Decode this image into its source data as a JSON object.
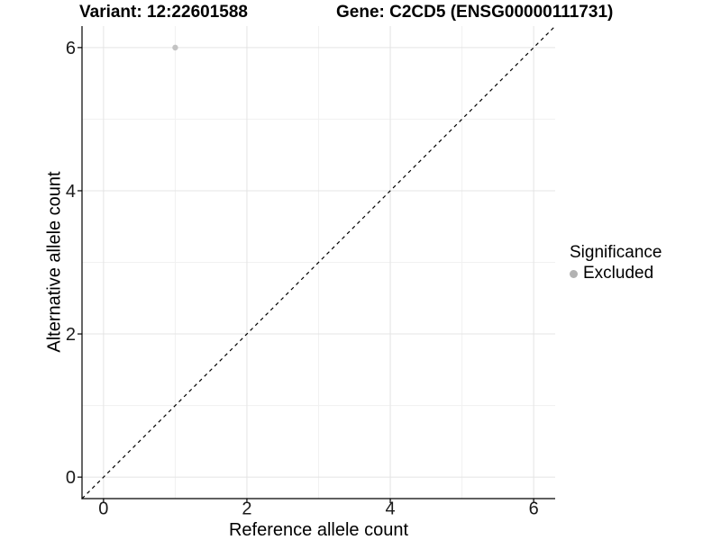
{
  "figure": {
    "background": "#ffffff"
  },
  "chart_data": {
    "type": "scatter",
    "titles": {
      "left": "Variant: 12:22601588",
      "right": "Gene: C2CD5 (ENSG00000111731)"
    },
    "xlabel": "Reference allele count",
    "ylabel": "Alternative allele count",
    "xlim": [
      -0.3,
      6.3
    ],
    "ylim": [
      -0.3,
      6.3
    ],
    "xticks": [
      0,
      2,
      4,
      6
    ],
    "yticks": [
      0,
      2,
      4,
      6
    ],
    "minor_xticks": [
      1,
      3,
      5
    ],
    "minor_yticks": [
      1,
      3,
      5
    ],
    "grid": {
      "major_color": "#e4e4e4",
      "minor_color": "#f1f1f1"
    },
    "axis_color": "#000000",
    "identity_line": {
      "from": [
        -0.3,
        -0.3
      ],
      "to": [
        6.3,
        6.3
      ],
      "style": "dashed",
      "color": "#000000"
    },
    "series": [
      {
        "name": "Excluded",
        "color": "#c3c3c3",
        "points": [
          {
            "x": 1,
            "y": 6
          }
        ]
      }
    ],
    "legend": {
      "title": "Significance",
      "position": "right",
      "items": [
        {
          "label": "Excluded",
          "color": "#b2b2b2",
          "marker": "circle"
        }
      ]
    }
  }
}
